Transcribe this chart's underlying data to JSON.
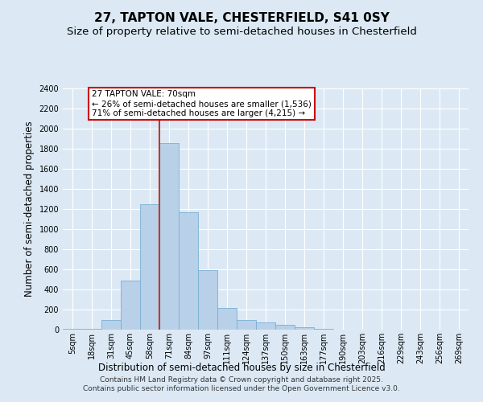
{
  "title": "27, TAPTON VALE, CHESTERFIELD, S41 0SY",
  "subtitle": "Size of property relative to semi-detached houses in Chesterfield",
  "xlabel": "Distribution of semi-detached houses by size in Chesterfield",
  "ylabel": "Number of semi-detached properties",
  "categories": [
    "5sqm",
    "18sqm",
    "31sqm",
    "45sqm",
    "58sqm",
    "71sqm",
    "84sqm",
    "97sqm",
    "111sqm",
    "124sqm",
    "137sqm",
    "150sqm",
    "163sqm",
    "177sqm",
    "190sqm",
    "203sqm",
    "216sqm",
    "229sqm",
    "243sqm",
    "256sqm",
    "269sqm"
  ],
  "values": [
    5,
    5,
    100,
    490,
    1250,
    1860,
    1170,
    590,
    215,
    100,
    70,
    50,
    25,
    5,
    0,
    0,
    0,
    0,
    0,
    0,
    0
  ],
  "bar_color": "#b8d0e8",
  "bar_edge_color": "#7aafd4",
  "vline_color": "#c0392b",
  "annotation_text": "27 TAPTON VALE: 70sqm\n← 26% of semi-detached houses are smaller (1,536)\n71% of semi-detached houses are larger (4,215) →",
  "annotation_box_color": "#cc0000",
  "ylim": [
    0,
    2400
  ],
  "yticks": [
    0,
    200,
    400,
    600,
    800,
    1000,
    1200,
    1400,
    1600,
    1800,
    2000,
    2200,
    2400
  ],
  "footnote": "Contains HM Land Registry data © Crown copyright and database right 2025.\nContains public sector information licensed under the Open Government Licence v3.0.",
  "bg_color": "#dce9f5",
  "plot_bg_color": "#dce9f5",
  "grid_color": "#ffffff",
  "title_fontsize": 11,
  "subtitle_fontsize": 9.5,
  "axis_label_fontsize": 8.5,
  "tick_fontsize": 7,
  "footnote_fontsize": 6.5
}
